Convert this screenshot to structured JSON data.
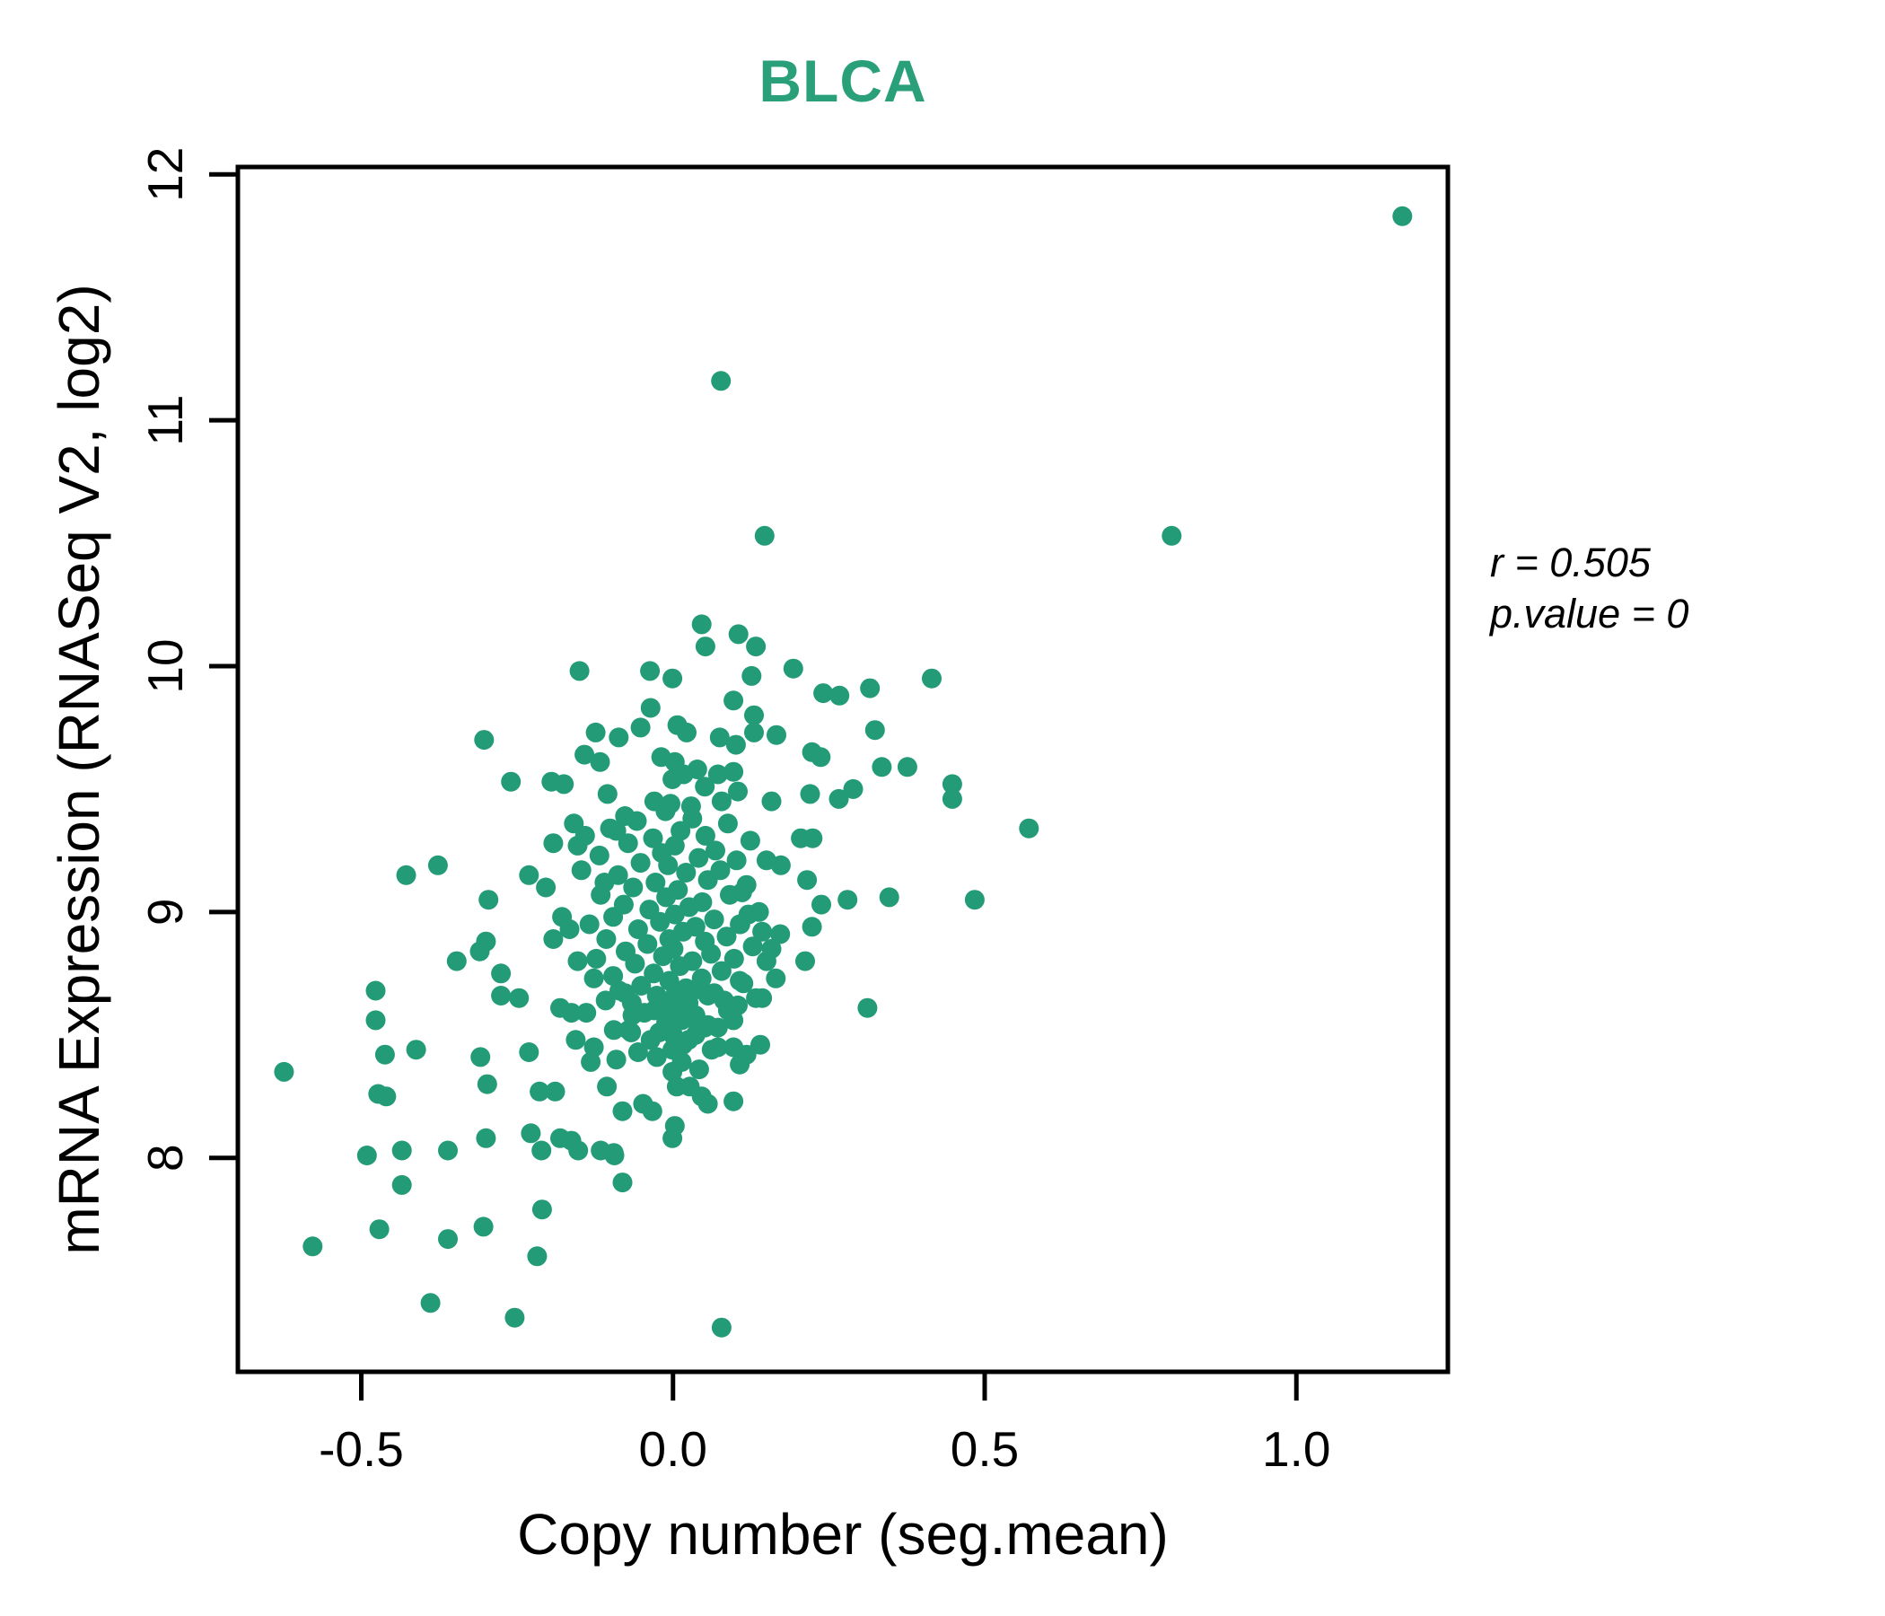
{
  "figure": {
    "background": "#ffffff",
    "accent_color": "#229b76"
  },
  "annotation": {
    "line1": "r = 0.505",
    "line2": "p.value = 0"
  },
  "chart_data": {
    "type": "scatter",
    "title": "BLCA",
    "title_color": "#2aa07a",
    "xlabel": "Copy number (seg.mean)",
    "ylabel": "mRNA Expression (RNASeq V2, log2)",
    "point_color": "#229b76",
    "point_radius": 11,
    "grid": false,
    "legend": "none",
    "stats": {
      "r": 0.505,
      "p_value": 0
    },
    "x_axis": {
      "min": -0.698,
      "max": 1.243,
      "tick_labels": [
        "-0.5",
        "0.0",
        "0.5",
        "1.0"
      ],
      "tick_values": [
        -0.5,
        0.0,
        0.5,
        1.0
      ]
    },
    "y_axis": {
      "min": 7.13,
      "max": 12.03,
      "tick_labels": [
        "8",
        "9",
        "10",
        "11",
        "12"
      ],
      "tick_values": [
        8,
        9,
        10,
        11,
        12
      ]
    },
    "points": [
      [
        1.17,
        11.83
      ],
      [
        0.077,
        11.16
      ],
      [
        0.147,
        10.53
      ],
      [
        0.8,
        10.53
      ],
      [
        0.046,
        10.17
      ],
      [
        0.105,
        10.13
      ],
      [
        0.133,
        10.08
      ],
      [
        0.052,
        10.08
      ],
      [
        0.193,
        9.99
      ],
      [
        -0.037,
        9.98
      ],
      [
        -0.001,
        9.95
      ],
      [
        0.126,
        9.96
      ],
      [
        0.241,
        9.89
      ],
      [
        0.267,
        9.88
      ],
      [
        0.316,
        9.91
      ],
      [
        0.415,
        9.95
      ],
      [
        -0.036,
        9.83
      ],
      [
        0.097,
        9.86
      ],
      [
        0.13,
        9.8
      ],
      [
        0.13,
        9.73
      ],
      [
        0.007,
        9.76
      ],
      [
        0.022,
        9.73
      ],
      [
        0.075,
        9.71
      ],
      [
        0.101,
        9.68
      ],
      [
        0.166,
        9.72
      ],
      [
        0.324,
        9.74
      ],
      [
        0.223,
        9.65
      ],
      [
        0.237,
        9.63
      ],
      [
        0.003,
        9.61
      ],
      [
        -0.019,
        9.63
      ],
      [
        0.017,
        9.56
      ],
      [
        -0.001,
        9.54
      ],
      [
        0.039,
        9.58
      ],
      [
        0.335,
        9.59
      ],
      [
        0.376,
        9.59
      ],
      [
        0.448,
        9.52
      ],
      [
        0.448,
        9.46
      ],
      [
        0.051,
        9.51
      ],
      [
        0.072,
        9.56
      ],
      [
        0.097,
        9.57
      ],
      [
        0.104,
        9.49
      ],
      [
        0.078,
        9.45
      ],
      [
        0.029,
        9.43
      ],
      [
        -0.004,
        9.44
      ],
      [
        -0.03,
        9.45
      ],
      [
        0.22,
        9.48
      ],
      [
        0.266,
        9.46
      ],
      [
        0.289,
        9.5
      ],
      [
        0.158,
        9.45
      ],
      [
        0.571,
        9.34
      ],
      [
        0.205,
        9.3
      ],
      [
        0.224,
        9.3
      ],
      [
        0.15,
        9.21
      ],
      [
        0.173,
        9.19
      ],
      [
        0.215,
        9.13
      ],
      [
        0.238,
        9.03
      ],
      [
        0.28,
        9.05
      ],
      [
        0.347,
        9.06
      ],
      [
        0.484,
        9.05
      ],
      [
        0.143,
        8.92
      ],
      [
        0.172,
        8.91
      ],
      [
        0.223,
        8.94
      ],
      [
        0.111,
        9.08
      ],
      [
        0.121,
        8.99
      ],
      [
        0.107,
        8.95
      ],
      [
        0.158,
        8.85
      ],
      [
        0.15,
        8.8
      ],
      [
        0.212,
        8.8
      ],
      [
        0.165,
        8.73
      ],
      [
        0.107,
        8.72
      ],
      [
        0.143,
        8.65
      ],
      [
        0.104,
        8.62
      ],
      [
        -0.15,
        9.98
      ],
      [
        -0.303,
        9.7
      ],
      [
        -0.124,
        9.73
      ],
      [
        -0.087,
        9.71
      ],
      [
        -0.052,
        9.75
      ],
      [
        -0.142,
        9.64
      ],
      [
        -0.117,
        9.61
      ],
      [
        -0.26,
        9.53
      ],
      [
        -0.195,
        9.53
      ],
      [
        -0.175,
        9.52
      ],
      [
        -0.159,
        9.36
      ],
      [
        -0.153,
        9.27
      ],
      [
        -0.192,
        9.28
      ],
      [
        -0.428,
        9.15
      ],
      [
        -0.377,
        9.19
      ],
      [
        -0.296,
        9.05
      ],
      [
        -0.231,
        9.15
      ],
      [
        -0.204,
        9.1
      ],
      [
        -0.178,
        8.98
      ],
      [
        -0.166,
        8.93
      ],
      [
        -0.11,
        9.12
      ],
      [
        -0.105,
        9.48
      ],
      [
        -0.077,
        9.39
      ],
      [
        -0.091,
        9.33
      ],
      [
        -0.347,
        8.8
      ],
      [
        -0.31,
        8.84
      ],
      [
        -0.3,
        8.88
      ],
      [
        -0.276,
        8.75
      ],
      [
        -0.192,
        8.89
      ],
      [
        -0.153,
        8.8
      ],
      [
        -0.127,
        8.73
      ],
      [
        -0.624,
        8.35
      ],
      [
        -0.477,
        8.68
      ],
      [
        -0.477,
        8.56
      ],
      [
        -0.462,
        8.42
      ],
      [
        -0.412,
        8.44
      ],
      [
        -0.309,
        8.41
      ],
      [
        -0.298,
        8.3
      ],
      [
        -0.231,
        8.43
      ],
      [
        -0.276,
        8.66
      ],
      [
        -0.247,
        8.65
      ],
      [
        -0.473,
        8.26
      ],
      [
        -0.46,
        8.25
      ],
      [
        -0.181,
        8.61
      ],
      [
        -0.163,
        8.59
      ],
      [
        -0.139,
        8.59
      ],
      [
        -0.108,
        8.64
      ],
      [
        -0.077,
        8.67
      ],
      [
        -0.065,
        8.58
      ],
      [
        -0.156,
        8.48
      ],
      [
        -0.127,
        8.45
      ],
      [
        -0.095,
        8.52
      ],
      [
        -0.067,
        8.51
      ],
      [
        -0.132,
        8.39
      ],
      [
        -0.091,
        8.4
      ],
      [
        -0.189,
        8.27
      ],
      [
        -0.214,
        8.27
      ],
      [
        -0.106,
        8.29
      ],
      [
        -0.081,
        8.19
      ],
      [
        -0.048,
        8.22
      ],
      [
        -0.228,
        8.1
      ],
      [
        -0.181,
        8.08
      ],
      [
        -0.116,
        8.03
      ],
      [
        -0.094,
        8.01
      ],
      [
        -0.081,
        7.9
      ],
      [
        -0.435,
        7.89
      ],
      [
        -0.21,
        7.79
      ],
      [
        -0.304,
        7.72
      ],
      [
        -0.491,
        8.01
      ],
      [
        -0.435,
        8.03
      ],
      [
        -0.361,
        8.03
      ],
      [
        -0.3,
        8.08
      ],
      [
        -0.211,
        8.03
      ],
      [
        -0.163,
        8.07
      ],
      [
        -0.152,
        8.03
      ],
      [
        -0.095,
        8.02
      ],
      [
        -0.578,
        7.64
      ],
      [
        -0.471,
        7.71
      ],
      [
        -0.361,
        7.67
      ],
      [
        -0.218,
        7.6
      ],
      [
        -0.389,
        7.41
      ],
      [
        -0.254,
        7.35
      ],
      [
        -0.019,
        8.64
      ],
      [
        0.003,
        8.66
      ],
      [
        0.025,
        8.63
      ],
      [
        -0.03,
        8.6
      ],
      [
        -0.007,
        8.58
      ],
      [
        0.014,
        8.56
      ],
      [
        0.036,
        8.58
      ],
      [
        0.056,
        8.66
      ],
      [
        0.082,
        8.64
      ],
      [
        0.032,
        8.68
      ],
      [
        0.097,
        8.56
      ],
      [
        0.072,
        8.53
      ],
      [
        0.051,
        8.53
      ],
      [
        0.0,
        8.5
      ],
      [
        -0.022,
        8.51
      ],
      [
        0.025,
        8.48
      ],
      [
        -0.001,
        8.44
      ],
      [
        -0.026,
        8.41
      ],
      [
        0.014,
        8.39
      ],
      [
        0.072,
        8.45
      ],
      [
        0.097,
        8.45
      ],
      [
        0.118,
        8.42
      ],
      [
        0.14,
        8.46
      ],
      [
        0.107,
        8.38
      ],
      [
        0.042,
        8.36
      ],
      [
        -0.001,
        8.35
      ],
      [
        0.027,
        8.29
      ],
      [
        0.006,
        8.29
      ],
      [
        0.046,
        8.25
      ],
      [
        0.056,
        8.22
      ],
      [
        0.097,
        8.23
      ],
      [
        -0.033,
        8.19
      ],
      [
        0.003,
        8.13
      ],
      [
        -0.001,
        8.08
      ],
      [
        0.312,
        8.61
      ],
      [
        0.078,
        7.31
      ],
      [
        -0.012,
        9.41
      ],
      [
        0.031,
        9.38
      ],
      [
        -0.058,
        9.37
      ],
      [
        0.088,
        9.36
      ],
      [
        -0.101,
        9.34
      ],
      [
        0.012,
        9.33
      ],
      [
        0.052,
        9.31
      ],
      [
        -0.032,
        9.3
      ],
      [
        -0.141,
        9.31
      ],
      [
        0.124,
        9.29
      ],
      [
        -0.072,
        9.28
      ],
      [
        0.003,
        9.27
      ],
      [
        0.068,
        9.25
      ],
      [
        -0.018,
        9.24
      ],
      [
        -0.118,
        9.23
      ],
      [
        0.041,
        9.22
      ],
      [
        0.102,
        9.21
      ],
      [
        -0.052,
        9.2
      ],
      [
        -0.008,
        9.19
      ],
      [
        0.076,
        9.17
      ],
      [
        -0.147,
        9.17
      ],
      [
        0.021,
        9.16
      ],
      [
        -0.088,
        9.15
      ],
      [
        0.056,
        9.13
      ],
      [
        -0.028,
        9.12
      ],
      [
        0.118,
        9.11
      ],
      [
        -0.064,
        9.1
      ],
      [
        0.008,
        9.09
      ],
      [
        0.091,
        9.07
      ],
      [
        -0.116,
        9.07
      ],
      [
        -0.011,
        9.06
      ],
      [
        0.047,
        9.04
      ],
      [
        -0.079,
        9.03
      ],
      [
        0.026,
        9.02
      ],
      [
        -0.038,
        9.01
      ],
      [
        0.138,
        9.0
      ],
      [
        0.003,
        8.99
      ],
      [
        -0.096,
        8.98
      ],
      [
        0.066,
        8.97
      ],
      [
        -0.021,
        8.96
      ],
      [
        0.108,
        8.95
      ],
      [
        -0.134,
        8.95
      ],
      [
        0.036,
        8.94
      ],
      [
        -0.056,
        8.93
      ],
      [
        0.016,
        8.92
      ],
      [
        0.086,
        8.9
      ],
      [
        -0.006,
        8.89
      ],
      [
        -0.107,
        8.89
      ],
      [
        0.051,
        8.88
      ],
      [
        -0.041,
        8.87
      ],
      [
        0.128,
        8.86
      ],
      [
        0.001,
        8.85
      ],
      [
        -0.076,
        8.84
      ],
      [
        0.061,
        8.83
      ],
      [
        -0.016,
        8.82
      ],
      [
        0.098,
        8.81
      ],
      [
        -0.123,
        8.81
      ],
      [
        0.031,
        8.8
      ],
      [
        -0.061,
        8.79
      ],
      [
        0.011,
        8.78
      ],
      [
        0.078,
        8.76
      ],
      [
        -0.031,
        8.75
      ],
      [
        -0.096,
        8.74
      ],
      [
        0.046,
        8.73
      ],
      [
        -0.006,
        8.72
      ],
      [
        0.113,
        8.71
      ],
      [
        -0.051,
        8.7
      ],
      [
        0.021,
        8.69
      ],
      [
        -0.086,
        8.68
      ],
      [
        0.066,
        8.67
      ],
      [
        -0.026,
        8.66
      ],
      [
        0.133,
        8.65
      ],
      [
        -0.066,
        8.63
      ],
      [
        0.006,
        8.62
      ],
      [
        0.088,
        8.6
      ],
      [
        -0.046,
        8.59
      ],
      [
        0.026,
        8.57
      ],
      [
        -0.011,
        8.55
      ],
      [
        0.056,
        8.54
      ],
      [
        -0.071,
        8.52
      ],
      [
        0.036,
        8.5
      ],
      [
        -0.036,
        8.48
      ],
      [
        0.016,
        8.46
      ],
      [
        0.062,
        8.44
      ],
      [
        -0.056,
        8.43
      ]
    ]
  }
}
